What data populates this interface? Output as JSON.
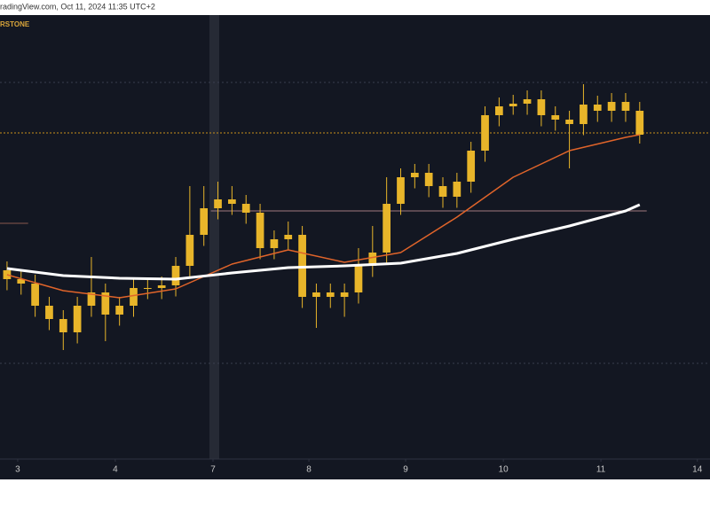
{
  "header": "radingView.com, Oct 11, 2024 11:35 UTC+2",
  "chart_data": {
    "type": "candlestick",
    "label": "RSTONE",
    "color": "#e8b52a",
    "xlim": [
      -0.5,
      50
    ],
    "ylim": [
      0,
      100
    ],
    "xticks": [
      {
        "value": 0.76,
        "label": "3"
      },
      {
        "value": 7.7,
        "label": "4"
      },
      {
        "value": 14.65,
        "label": "7"
      },
      {
        "value": 21.47,
        "label": "8"
      },
      {
        "value": 28.35,
        "label": "9"
      },
      {
        "value": 35.3,
        "label": "10"
      },
      {
        "value": 42.24,
        "label": "11"
      },
      {
        "value": 49.1,
        "label": "14"
      }
    ],
    "x": [
      0,
      1,
      2,
      3,
      4,
      5,
      6,
      7,
      8,
      9,
      10,
      11,
      12,
      13,
      14,
      15,
      16,
      17,
      18,
      19,
      20,
      21,
      22,
      23,
      24,
      25,
      26,
      27,
      28,
      29,
      30,
      31,
      32,
      33,
      34,
      35,
      36,
      37,
      38,
      39,
      40,
      41,
      42,
      43,
      44,
      45
    ],
    "open": [
      42.6,
      40.6,
      39.6,
      34.6,
      31.6,
      28.6,
      34.6,
      37.6,
      32.6,
      34.6,
      38.6,
      38.6,
      39.2,
      43.6,
      50.6,
      56.6,
      58.6,
      57.6,
      55.6,
      47.6,
      49.6,
      50.6,
      36.6,
      37.6,
      36.6,
      37.6,
      43.6,
      46.6,
      57.6,
      63.6,
      64.6,
      61.6,
      59.2,
      62.6,
      69.6,
      77.6,
      79.6,
      80.2,
      81.2,
      77.6,
      76.6,
      75.6,
      80,
      78.6,
      80.6,
      78.6
    ],
    "high": [
      44.6,
      42.6,
      41.6,
      36.6,
      33.6,
      36.6,
      45.6,
      39.6,
      36.6,
      40.6,
      40.6,
      41.2,
      45.6,
      61.6,
      61.6,
      62.6,
      61.6,
      59.6,
      57.6,
      51.6,
      53.6,
      52.6,
      39.6,
      39.6,
      39.6,
      47.6,
      52.6,
      63.6,
      65.6,
      66.6,
      66.6,
      63.6,
      64.6,
      71.6,
      79.6,
      81.6,
      82.2,
      83.2,
      83.2,
      79.6,
      78.6,
      84.6,
      82,
      82.6,
      82.6,
      80.6
    ],
    "low": [
      38.1,
      37.1,
      32.1,
      29.1,
      24.6,
      26.1,
      32.1,
      26.6,
      30.1,
      32.1,
      36.1,
      36.1,
      36.7,
      41.1,
      48.1,
      54.1,
      55.1,
      53.1,
      45.1,
      45.1,
      47.1,
      34.1,
      29.6,
      34.1,
      32.1,
      35.1,
      41.1,
      44.1,
      55.1,
      61.1,
      59.1,
      56.7,
      56.7,
      60.1,
      67.1,
      75.1,
      77.7,
      77.7,
      75.1,
      74.1,
      65.6,
      73.1,
      76.1,
      76.1,
      76.1,
      71.2
    ],
    "close": [
      40.6,
      39.6,
      34.6,
      31.6,
      28.6,
      34.6,
      37.6,
      32.6,
      34.6,
      38.6,
      38.6,
      39.2,
      43.6,
      50.6,
      56.6,
      58.6,
      57.6,
      55.6,
      47.6,
      49.6,
      50.6,
      36.6,
      37.6,
      36.6,
      37.6,
      43.6,
      46.6,
      57.6,
      63.6,
      64.6,
      61.6,
      59.2,
      62.6,
      69.6,
      77.6,
      79.6,
      80.2,
      81.2,
      77.6,
      76.6,
      75.6,
      80,
      78.6,
      80.6,
      78.6,
      73.2
    ],
    "lines": [
      {
        "color": "#e0642a",
        "width": 1.5,
        "x": [
          0,
          4,
          8,
          12,
          16,
          20,
          24,
          28,
          32,
          36,
          40,
          44,
          45
        ],
        "values": [
          41.6,
          38,
          36.4,
          38.4,
          44,
          47.2,
          44.4,
          46.6,
          54.6,
          63.6,
          69.6,
          72.6,
          73.2
        ]
      },
      {
        "color": "#ffffff",
        "width": 3,
        "x": [
          0,
          4,
          8,
          12,
          16,
          20,
          24,
          28,
          32,
          36,
          40,
          44,
          45
        ],
        "values": [
          43,
          41.4,
          40.8,
          40.6,
          42,
          43.2,
          43.6,
          44.2,
          46.4,
          49.6,
          52.6,
          56,
          57.4
        ]
      }
    ],
    "hlines": [
      {
        "value": 85,
        "color": "#3a3f4e",
        "dash": "2 3",
        "from": -0.5,
        "to": 50
      },
      {
        "value": 73.6,
        "color": "#c8901a",
        "dash": "2 2",
        "from": -0.5,
        "to": 50
      },
      {
        "value": 21.6,
        "color": "#3a3f4e",
        "dash": "2 3",
        "from": -0.5,
        "to": 50
      },
      {
        "value": 53.2,
        "color": "#8a5a4e",
        "dash": "",
        "from": -0.5,
        "to": 1.5
      },
      {
        "value": 56,
        "color": "#a07a7e",
        "dash": "",
        "from": 14.5,
        "to": 45.5
      }
    ]
  }
}
